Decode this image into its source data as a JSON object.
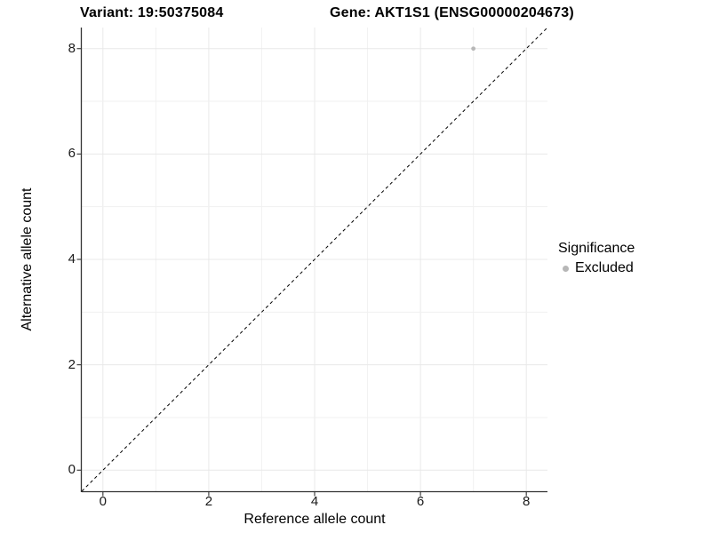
{
  "header": {
    "variant_title": "Variant: 19:50375084",
    "gene_title": "Gene: AKT1S1 (ENSG00000204673)"
  },
  "chart_data": {
    "type": "scatter",
    "title_left": "Variant: 19:50375084",
    "title_right": "Gene: AKT1S1 (ENSG00000204673)",
    "xlabel": "Reference allele count",
    "ylabel": "Alternative allele count",
    "xlim": [
      -0.4,
      8.4
    ],
    "ylim": [
      -0.4,
      8.4
    ],
    "xticks": [
      0,
      2,
      4,
      6,
      8
    ],
    "yticks": [
      0,
      2,
      4,
      6,
      8
    ],
    "grid": true,
    "minor_grid": true,
    "series": [
      {
        "name": "Excluded",
        "points": [
          {
            "x": 7,
            "y": 8
          }
        ]
      }
    ],
    "reference_line": {
      "style": "dashed",
      "from": [
        -0.4,
        -0.4
      ],
      "to": [
        8.4,
        8.4
      ]
    },
    "legend": {
      "title": "Significance",
      "position": "right",
      "entries": [
        {
          "label": "Excluded",
          "color": "#b7b7b7",
          "marker": "circle"
        }
      ]
    }
  },
  "colors": {
    "background": "#ffffff",
    "grid_major": "#e8e8e8",
    "grid_minor": "#f1f1f1",
    "axis_line": "#333333",
    "dashed_line": "#000000",
    "point": "#b7b7b7",
    "tick_text": "#1a1a1a",
    "title_text": "#000000"
  }
}
